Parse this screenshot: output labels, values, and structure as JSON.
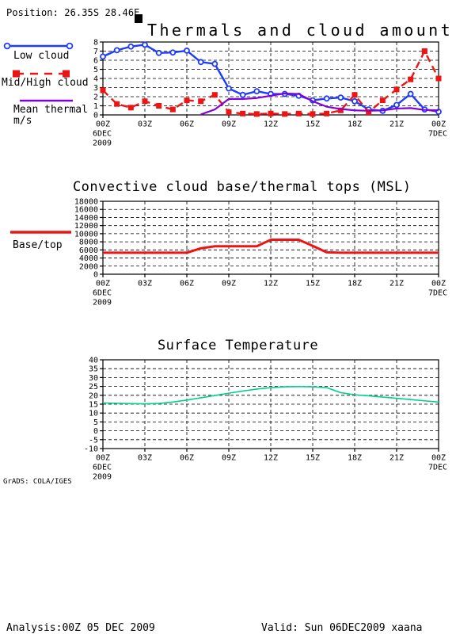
{
  "position_label": "Position: 26.35S 28.46E",
  "watermark": "GrADS: COLA/IGES",
  "footer": {
    "analysis": "Analysis:00Z 05 DEC 2009",
    "valid": "Valid: Sun 06DEC2009 xaana"
  },
  "colors": {
    "low_cloud": "#1e3cff",
    "mid_high_cloud": "#ee1414",
    "mean_thermal": "#8200dc",
    "base_top": "#ee1414",
    "temperature": "#00d28c",
    "axis": "#000000"
  },
  "chart_data": [
    {
      "type": "line",
      "title": "Thermals and cloud amount",
      "x": {
        "tick_hours": [
          0,
          3,
          6,
          9,
          12,
          15,
          18,
          21,
          24
        ],
        "tick_labels": [
          "00Z",
          "03Z",
          "06Z",
          "09Z",
          "12Z",
          "15Z",
          "18Z",
          "21Z",
          "00Z"
        ],
        "start_date": [
          "6DEC",
          "2009"
        ],
        "end_date": [
          "7DEC"
        ]
      },
      "y": {
        "min": 0,
        "max": 8,
        "tick_step": 1,
        "tick_labels": [
          "0",
          "1",
          "2",
          "3",
          "4",
          "5",
          "6",
          "7",
          "8"
        ]
      },
      "grid": true,
      "series": [
        {
          "name": "Low cloud",
          "color": "#1e3cff",
          "style": "solid",
          "marker": "open-circle",
          "values": [
            6.4,
            7.1,
            7.5,
            7.7,
            6.8,
            6.85,
            7.05,
            5.8,
            5.6,
            2.9,
            2.2,
            2.6,
            2.3,
            2.3,
            2.1,
            1.6,
            1.8,
            1.9,
            1.5,
            0.6,
            0.45,
            1.1,
            2.3,
            0.6,
            0.35
          ]
        },
        {
          "name": "Mid/High cloud",
          "color": "#ee1414",
          "style": "dashed",
          "marker": "filled-square",
          "values": [
            2.7,
            1.2,
            0.8,
            1.5,
            1.0,
            0.6,
            1.6,
            1.5,
            2.2,
            0.3,
            0.15,
            0.1,
            0.15,
            0.1,
            0.15,
            0.1,
            0.15,
            0.5,
            2.2,
            0.3,
            1.6,
            2.8,
            3.9,
            7.0,
            4.0
          ]
        },
        {
          "name": "Mean thermal m/s",
          "color": "#8200dc",
          "style": "solid",
          "marker": "none",
          "values": [
            null,
            null,
            null,
            null,
            null,
            null,
            null,
            0.05,
            0.6,
            1.75,
            1.75,
            1.85,
            2.1,
            2.35,
            2.3,
            1.5,
            0.9,
            0.65,
            0.5,
            0.45,
            0.5,
            0.7,
            0.75,
            0.55,
            0.5
          ]
        }
      ],
      "legend": {
        "position": "left",
        "items": [
          {
            "lines": [
              "Low cloud"
            ]
          },
          {
            "lines": [
              "Mid/High cloud"
            ]
          },
          {
            "lines": [
              "Mean thermal",
              "m/s"
            ]
          }
        ]
      }
    },
    {
      "type": "line",
      "title": "Convective cloud base/thermal tops (MSL)",
      "x": {
        "tick_hours": [
          0,
          3,
          6,
          9,
          12,
          15,
          18,
          21,
          24
        ],
        "tick_labels": [
          "00Z",
          "03Z",
          "06Z",
          "09Z",
          "12Z",
          "15Z",
          "18Z",
          "21Z",
          "00Z"
        ],
        "start_date": [
          "6DEC",
          "2009"
        ],
        "end_date": [
          "7DEC"
        ]
      },
      "y": {
        "min": 0,
        "max": 18000,
        "tick_step": 2000,
        "tick_labels": [
          "0",
          "2000",
          "4000",
          "6000",
          "8000",
          "10000",
          "12000",
          "14000",
          "16000",
          "18000"
        ]
      },
      "grid": true,
      "series": [
        {
          "name": "Base/top",
          "color": "#ee1414",
          "style": "solid",
          "marker": "none",
          "values": [
            5300,
            5300,
            5300,
            5300,
            5300,
            5300,
            5300,
            6400,
            6900,
            6900,
            6900,
            6900,
            8500,
            8500,
            8500,
            7000,
            5400,
            5300,
            5300,
            5300,
            5300,
            5300,
            5300,
            5300,
            5300
          ]
        }
      ],
      "legend": {
        "position": "left",
        "items": [
          {
            "lines": [
              "Base/top"
            ]
          }
        ]
      }
    },
    {
      "type": "line",
      "title": "Surface Temperature",
      "x": {
        "tick_hours": [
          0,
          3,
          6,
          9,
          12,
          15,
          18,
          21,
          24
        ],
        "tick_labels": [
          "00Z",
          "03Z",
          "06Z",
          "09Z",
          "12Z",
          "15Z",
          "18Z",
          "21Z",
          "00Z"
        ],
        "start_date": [
          "6DEC",
          "2009"
        ],
        "end_date": [
          "7DEC"
        ]
      },
      "y": {
        "min": -10,
        "max": 40,
        "tick_step": 5,
        "tick_labels": [
          "-10",
          "-5",
          "0",
          "5",
          "10",
          "15",
          "20",
          "25",
          "30",
          "35",
          "40"
        ]
      },
      "grid": true,
      "series": [
        {
          "name": "Surface temperature",
          "color": "#00d28c",
          "style": "solid",
          "marker": "none",
          "values": [
            15.7,
            15.5,
            15.3,
            15.2,
            15.4,
            16.2,
            17.3,
            18.6,
            19.9,
            21.2,
            22.4,
            23.5,
            24.3,
            24.8,
            24.9,
            24.8,
            24.3,
            21.5,
            20.3,
            19.7,
            19.0,
            18.3,
            17.6,
            16.9,
            16.2
          ]
        }
      ],
      "legend": {
        "position": "left",
        "items": []
      }
    }
  ]
}
